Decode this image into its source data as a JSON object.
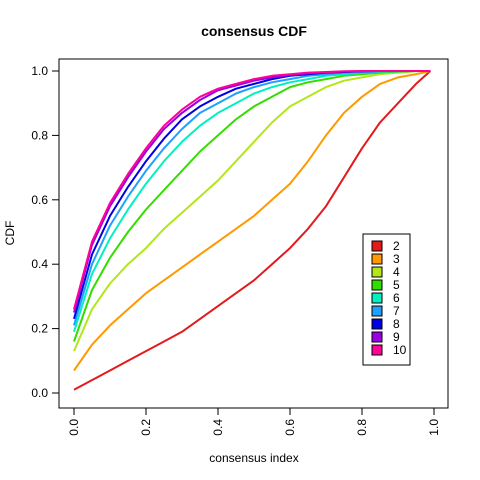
{
  "chart_data": {
    "type": "line",
    "title": "consensus CDF",
    "xlabel": "consensus index",
    "ylabel": "CDF",
    "xlim": [
      0,
      1
    ],
    "ylim": [
      0,
      1
    ],
    "x_ticks": [
      "0.0",
      "0.2",
      "0.4",
      "0.6",
      "0.8",
      "1.0"
    ],
    "y_ticks": [
      "0.0",
      "0.2",
      "0.4",
      "0.6",
      "0.8",
      "1.0"
    ],
    "grid": false,
    "legend_position": "bottom-right",
    "x": [
      0.0,
      0.05,
      0.1,
      0.15,
      0.2,
      0.25,
      0.3,
      0.35,
      0.4,
      0.45,
      0.5,
      0.55,
      0.6,
      0.65,
      0.7,
      0.75,
      0.8,
      0.85,
      0.9,
      0.95,
      0.99
    ],
    "series": [
      {
        "name": "2",
        "color": "#e31a1c",
        "values": [
          0.01,
          0.04,
          0.07,
          0.1,
          0.13,
          0.16,
          0.19,
          0.23,
          0.27,
          0.31,
          0.35,
          0.4,
          0.45,
          0.51,
          0.58,
          0.67,
          0.76,
          0.84,
          0.9,
          0.96,
          1.0
        ]
      },
      {
        "name": "3",
        "color": "#ff9900",
        "values": [
          0.07,
          0.15,
          0.21,
          0.26,
          0.31,
          0.35,
          0.39,
          0.43,
          0.47,
          0.51,
          0.55,
          0.6,
          0.65,
          0.72,
          0.8,
          0.87,
          0.92,
          0.96,
          0.98,
          0.99,
          1.0
        ]
      },
      {
        "name": "4",
        "color": "#b3e61a",
        "values": [
          0.13,
          0.26,
          0.34,
          0.4,
          0.45,
          0.51,
          0.56,
          0.61,
          0.66,
          0.72,
          0.78,
          0.84,
          0.89,
          0.92,
          0.95,
          0.97,
          0.98,
          0.99,
          0.995,
          0.999,
          1.0
        ]
      },
      {
        "name": "5",
        "color": "#33dd00",
        "values": [
          0.16,
          0.32,
          0.42,
          0.5,
          0.57,
          0.63,
          0.69,
          0.75,
          0.8,
          0.85,
          0.89,
          0.92,
          0.95,
          0.965,
          0.975,
          0.985,
          0.99,
          0.995,
          0.998,
          1.0,
          1.0
        ]
      },
      {
        "name": "6",
        "color": "#00f0c0",
        "values": [
          0.19,
          0.37,
          0.48,
          0.57,
          0.65,
          0.72,
          0.78,
          0.83,
          0.87,
          0.9,
          0.93,
          0.95,
          0.965,
          0.975,
          0.985,
          0.99,
          0.995,
          0.998,
          0.999,
          1.0,
          1.0
        ]
      },
      {
        "name": "7",
        "color": "#1ea0ff",
        "values": [
          0.21,
          0.4,
          0.52,
          0.61,
          0.69,
          0.76,
          0.82,
          0.87,
          0.9,
          0.93,
          0.95,
          0.965,
          0.975,
          0.985,
          0.99,
          0.995,
          0.997,
          0.999,
          1.0,
          1.0,
          1.0
        ]
      },
      {
        "name": "8",
        "color": "#0000e0",
        "values": [
          0.23,
          0.43,
          0.55,
          0.64,
          0.72,
          0.79,
          0.85,
          0.89,
          0.92,
          0.945,
          0.96,
          0.975,
          0.985,
          0.99,
          0.995,
          0.997,
          0.999,
          1.0,
          1.0,
          1.0,
          1.0
        ]
      },
      {
        "name": "9",
        "color": "#9900e6",
        "values": [
          0.25,
          0.46,
          0.58,
          0.67,
          0.75,
          0.82,
          0.87,
          0.91,
          0.94,
          0.955,
          0.97,
          0.98,
          0.988,
          0.993,
          0.996,
          0.998,
          0.999,
          1.0,
          1.0,
          1.0,
          1.0
        ]
      },
      {
        "name": "10",
        "color": "#ff0099",
        "values": [
          0.26,
          0.47,
          0.59,
          0.68,
          0.76,
          0.83,
          0.88,
          0.92,
          0.945,
          0.96,
          0.975,
          0.985,
          0.99,
          0.995,
          0.997,
          0.999,
          1.0,
          1.0,
          1.0,
          1.0,
          1.0
        ]
      }
    ]
  }
}
